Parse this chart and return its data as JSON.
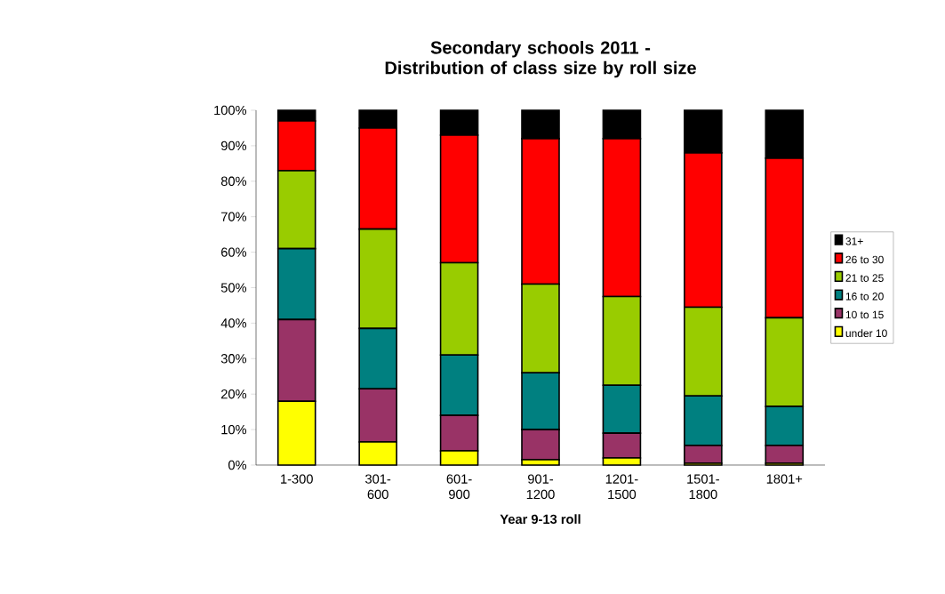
{
  "chart_data": {
    "type": "bar",
    "stacked": true,
    "title": "Secondary schools 2011 - Distribution of class size by roll size",
    "xlabel": "Year 9-13 roll",
    "categories": [
      "1-300",
      "301-600",
      "601-900",
      "901-1200",
      "1201-1500",
      "1501-1800",
      "1801+"
    ],
    "series": [
      {
        "name": "under 10",
        "color": "#ffff00",
        "values": [
          18,
          6.5,
          4,
          1.5,
          2,
          0.5,
          0.5
        ]
      },
      {
        "name": "10 to 15",
        "color": "#993366",
        "values": [
          23,
          15,
          10,
          8.5,
          7,
          5,
          5
        ]
      },
      {
        "name": "16 to 20",
        "color": "#008080",
        "values": [
          20,
          17,
          17,
          16,
          13.5,
          14,
          11
        ]
      },
      {
        "name": "21 to 25",
        "color": "#99cc00",
        "values": [
          22,
          28,
          26,
          25,
          25,
          25,
          25
        ]
      },
      {
        "name": "26 to 30",
        "color": "#ff0000",
        "values": [
          14,
          28.5,
          36,
          41,
          44.5,
          43.5,
          45
        ]
      },
      {
        "name": "31+",
        "color": "#000000",
        "values": [
          3,
          5,
          7,
          8,
          8,
          12,
          13.5
        ]
      }
    ],
    "ylim": [
      0,
      100
    ],
    "yticks": [
      {
        "value": 0,
        "label": "0%"
      },
      {
        "value": 10,
        "label": "10%"
      },
      {
        "value": 20,
        "label": "20%"
      },
      {
        "value": 30,
        "label": "30%"
      },
      {
        "value": 40,
        "label": "40%"
      },
      {
        "value": 50,
        "label": "50%"
      },
      {
        "value": 60,
        "label": "60%"
      },
      {
        "value": 70,
        "label": "70%"
      },
      {
        "value": 80,
        "label": "80%"
      },
      {
        "value": 90,
        "label": "90%"
      },
      {
        "value": 100,
        "label": "100%"
      }
    ],
    "grid": false,
    "legend": "right"
  }
}
